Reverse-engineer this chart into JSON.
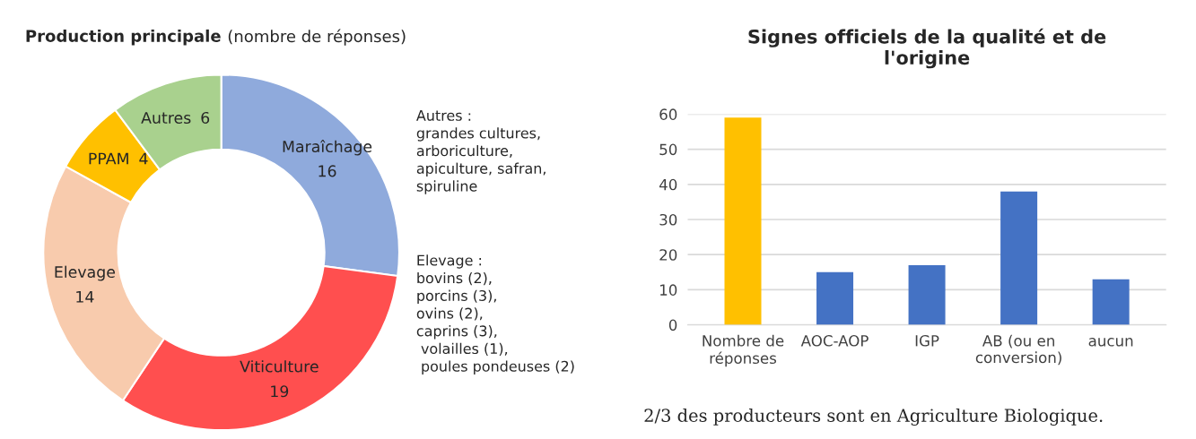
{
  "chart_data": [
    {
      "type": "donut",
      "title": "Production principale",
      "subtitle": "(nombre de réponses)",
      "categories": [
        "Maraîchage",
        "Viticulture",
        "Elevage",
        "PPAM",
        "Autres"
      ],
      "values": [
        16,
        19,
        14,
        4,
        6
      ],
      "colors": [
        "#8faadc",
        "#ff4f4f",
        "#f8cbad",
        "#ffc000",
        "#a9d18e"
      ],
      "data_labels": true,
      "annotations": [
        "Autres :\ngrandes cultures,\narboriculture,\napiculture, safran,\nspiruline",
        "Elevage :\nbovins (2),\nporcins (3),\novins (2),\ncaprins (3),\n volailles (1),\n poules pondeuses (2)"
      ]
    },
    {
      "type": "bar",
      "title": "Signes officiels de la qualité et de\nl'origine",
      "categories": [
        "Nombre de\nréponses",
        "AOC-AOP",
        "IGP",
        "AB (ou en\nconversion)",
        "aucun"
      ],
      "values": [
        59,
        15,
        17,
        38,
        13
      ],
      "colors": [
        "#ffc000",
        "#4472c4",
        "#4472c4",
        "#4472c4",
        "#4472c4"
      ],
      "ylim": [
        0,
        60
      ],
      "yticks": [
        0,
        10,
        20,
        30,
        40,
        50,
        60
      ],
      "grid": "y",
      "annotations": [
        "2/3 des producteurs sont en Agriculture Biologique."
      ]
    }
  ]
}
